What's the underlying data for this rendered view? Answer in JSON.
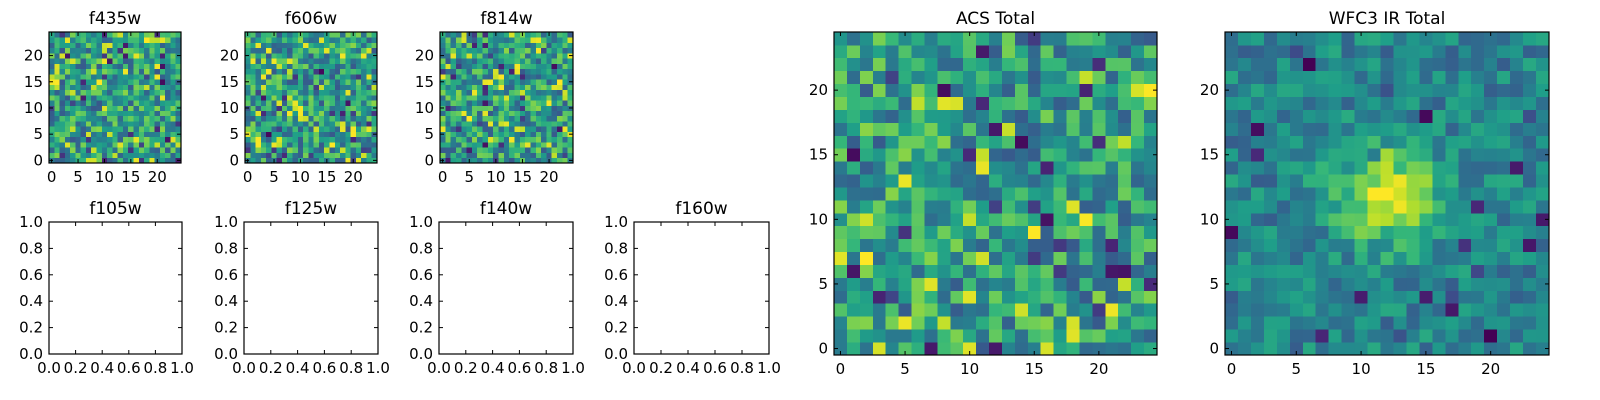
{
  "chart_data": [
    {
      "type": "heatmap",
      "title": "f435w",
      "xlabel": "",
      "ylabel": "",
      "grid_size": [
        25,
        25
      ],
      "xlim": [
        -0.5,
        24.5
      ],
      "ylim": [
        -0.5,
        24.5
      ],
      "xticks": [
        0,
        5,
        10,
        15,
        20
      ],
      "yticks": [
        0,
        5,
        10,
        15,
        20
      ],
      "colormap": "viridis",
      "pattern": "noise",
      "seed": 11
    },
    {
      "type": "heatmap",
      "title": "f606w",
      "xlabel": "",
      "ylabel": "",
      "grid_size": [
        25,
        25
      ],
      "xlim": [
        -0.5,
        24.5
      ],
      "ylim": [
        -0.5,
        24.5
      ],
      "xticks": [
        0,
        5,
        10,
        15,
        20
      ],
      "yticks": [
        0,
        5,
        10,
        15,
        20
      ],
      "colormap": "viridis",
      "pattern": "noise",
      "seed": 23
    },
    {
      "type": "heatmap",
      "title": "f814w",
      "xlabel": "",
      "ylabel": "",
      "grid_size": [
        25,
        25
      ],
      "xlim": [
        -0.5,
        24.5
      ],
      "ylim": [
        -0.5,
        24.5
      ],
      "xticks": [
        0,
        5,
        10,
        15,
        20
      ],
      "yticks": [
        0,
        5,
        10,
        15,
        20
      ],
      "colormap": "viridis",
      "pattern": "noise",
      "seed": 37
    },
    {
      "type": "heatmap",
      "title": "f105w",
      "empty": true,
      "xlim": [
        0,
        1
      ],
      "ylim": [
        0,
        1
      ],
      "xticks": [
        "0.0",
        "0.2",
        "0.4",
        "0.6",
        "0.8",
        "1.0"
      ],
      "yticks": [
        "0.0",
        "0.2",
        "0.4",
        "0.6",
        "0.8",
        "1.0"
      ]
    },
    {
      "type": "heatmap",
      "title": "f125w",
      "empty": true,
      "xlim": [
        0,
        1
      ],
      "ylim": [
        0,
        1
      ],
      "xticks": [
        "0.0",
        "0.2",
        "0.4",
        "0.6",
        "0.8",
        "1.0"
      ],
      "yticks": [
        "0.0",
        "0.2",
        "0.4",
        "0.6",
        "0.8",
        "1.0"
      ]
    },
    {
      "type": "heatmap",
      "title": "f140w",
      "empty": true,
      "xlim": [
        0,
        1
      ],
      "ylim": [
        0,
        1
      ],
      "xticks": [
        "0.0",
        "0.2",
        "0.4",
        "0.6",
        "0.8",
        "1.0"
      ],
      "yticks": [
        "0.0",
        "0.2",
        "0.4",
        "0.6",
        "0.8",
        "1.0"
      ]
    },
    {
      "type": "heatmap",
      "title": "f160w",
      "empty": true,
      "xlim": [
        0,
        1
      ],
      "ylim": [
        0,
        1
      ],
      "xticks": [
        "0.0",
        "0.2",
        "0.4",
        "0.6",
        "0.8",
        "1.0"
      ],
      "yticks": [
        "0.0",
        "0.2",
        "0.4",
        "0.6",
        "0.8",
        "1.0"
      ]
    },
    {
      "type": "heatmap",
      "title": "ACS Total",
      "xlabel": "",
      "ylabel": "",
      "grid_size": [
        25,
        25
      ],
      "xlim": [
        -0.5,
        24.5
      ],
      "ylim": [
        -0.5,
        24.5
      ],
      "xticks": [
        0,
        5,
        10,
        15,
        20
      ],
      "yticks": [
        0,
        5,
        10,
        15,
        20
      ],
      "colormap": "viridis",
      "pattern": "noise",
      "seed": 53
    },
    {
      "type": "heatmap",
      "title": "WFC3 IR Total",
      "xlabel": "",
      "ylabel": "",
      "grid_size": [
        25,
        25
      ],
      "xlim": [
        -0.5,
        24.5
      ],
      "ylim": [
        -0.5,
        24.5
      ],
      "xticks": [
        0,
        5,
        10,
        15,
        20
      ],
      "yticks": [
        0,
        5,
        10,
        15,
        20
      ],
      "colormap": "viridis",
      "pattern": "central-source",
      "source_center": [
        12,
        12
      ],
      "seed": 71
    }
  ]
}
